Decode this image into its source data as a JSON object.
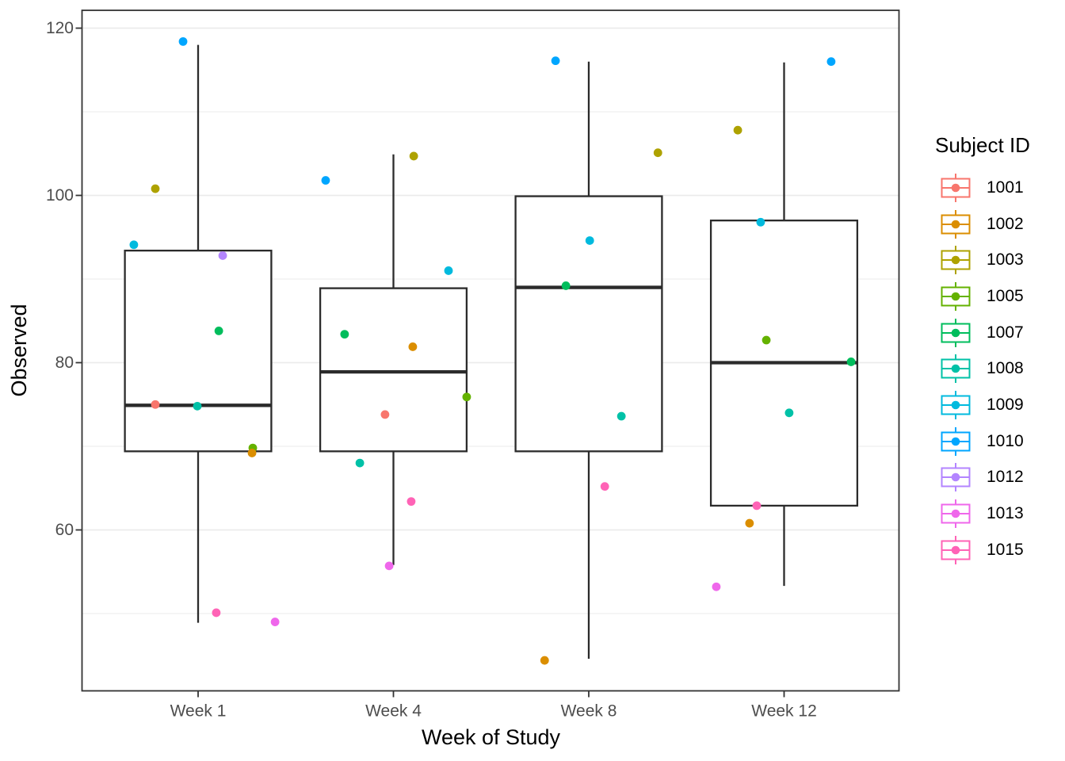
{
  "figure": {
    "background": "#FFFFFF"
  },
  "axes": {
    "x": {
      "title": "Week of Study",
      "categories": [
        "Week 1",
        "Week 4",
        "Week 8",
        "Week 12"
      ]
    },
    "y": {
      "title": "Observed",
      "major_ticks": [
        60,
        80,
        100,
        120
      ],
      "minor_gridlines": [
        50,
        70,
        90,
        110
      ],
      "ylim": [
        40.7,
        122.3
      ]
    }
  },
  "legend": {
    "title": "Subject ID",
    "items": [
      {
        "id": "1001",
        "color": "#F8766D"
      },
      {
        "id": "1002",
        "color": "#DB8E00"
      },
      {
        "id": "1003",
        "color": "#AEA200"
      },
      {
        "id": "1005",
        "color": "#64B200"
      },
      {
        "id": "1007",
        "color": "#00BD5C"
      },
      {
        "id": "1008",
        "color": "#00C1A7"
      },
      {
        "id": "1009",
        "color": "#00BADE"
      },
      {
        "id": "1010",
        "color": "#00A6FF"
      },
      {
        "id": "1012",
        "color": "#B385FF"
      },
      {
        "id": "1013",
        "color": "#EF67EB"
      },
      {
        "id": "1015",
        "color": "#FF63B6"
      }
    ]
  },
  "style_colors": {
    "grid": "#EBEBEB",
    "panel_border": "#333333",
    "box_stroke": "#2B2B2B",
    "tick_mark": "#333333",
    "tick_label": "#4D4D4D",
    "axis_title": "#000000",
    "panel_background": "#FFFFFF"
  },
  "chart_data": {
    "type": "boxplot",
    "render_style": "box-and-whisker with jittered points, theme_bw",
    "title": "",
    "xlabel": "Week of Study",
    "ylabel": "Observed",
    "categories": [
      "Week 1",
      "Week 4",
      "Week 8",
      "Week 12"
    ],
    "y_ticks": [
      60,
      80,
      100,
      120
    ],
    "ylim": [
      40.7,
      122.3
    ],
    "grid": "on",
    "legend_position": "right",
    "legend_title": "Subject ID",
    "boxes": [
      {
        "category": "Week 1",
        "whisker_low": 48.9,
        "q1": 69.4,
        "median": 74.9,
        "q3": 93.4,
        "whisker_high": 118.0
      },
      {
        "category": "Week 4",
        "whisker_low": 55.8,
        "q1": 69.4,
        "median": 78.9,
        "q3": 88.9,
        "whisker_high": 104.9
      },
      {
        "category": "Week 8",
        "whisker_low": 44.6,
        "q1": 69.4,
        "median": 89.0,
        "q3": 99.9,
        "whisker_high": 116.0
      },
      {
        "category": "Week 12",
        "whisker_low": 53.3,
        "q1": 62.9,
        "median": 80.0,
        "q3": 97.0,
        "whisker_high": 115.9
      }
    ],
    "points": [
      {
        "category": "Week 1",
        "subject": "1010",
        "value": 118.4,
        "jitter": -0.077
      },
      {
        "category": "Week 1",
        "subject": "1003",
        "value": 100.8,
        "jitter": -0.219
      },
      {
        "category": "Week 1",
        "subject": "1009",
        "value": 94.1,
        "jitter": -0.329
      },
      {
        "category": "Week 1",
        "subject": "1012",
        "value": 92.8,
        "jitter": 0.126
      },
      {
        "category": "Week 1",
        "subject": "1007",
        "value": 83.8,
        "jitter": 0.106
      },
      {
        "category": "Week 1",
        "subject": "1001",
        "value": 75.0,
        "jitter": -0.219
      },
      {
        "category": "Week 1",
        "subject": "1008",
        "value": 74.8,
        "jitter": -0.004
      },
      {
        "category": "Week 1",
        "subject": "1005",
        "value": 69.8,
        "jitter": 0.28
      },
      {
        "category": "Week 1",
        "subject": "1002",
        "value": 69.2,
        "jitter": 0.276
      },
      {
        "category": "Week 1",
        "subject": "1015",
        "value": 50.1,
        "jitter": 0.093
      },
      {
        "category": "Week 1",
        "subject": "1013",
        "value": 49.0,
        "jitter": 0.394
      },
      {
        "category": "Week 4",
        "subject": "1003",
        "value": 104.7,
        "jitter": 0.104
      },
      {
        "category": "Week 4",
        "subject": "1010",
        "value": 101.8,
        "jitter": -0.347
      },
      {
        "category": "Week 4",
        "subject": "1009",
        "value": 91.0,
        "jitter": 0.282
      },
      {
        "category": "Week 4",
        "subject": "1007",
        "value": 83.4,
        "jitter": -0.25
      },
      {
        "category": "Week 4",
        "subject": "1002",
        "value": 81.9,
        "jitter": 0.099
      },
      {
        "category": "Week 4",
        "subject": "1005",
        "value": 75.9,
        "jitter": 0.375
      },
      {
        "category": "Week 4",
        "subject": "1001",
        "value": 73.8,
        "jitter": -0.043
      },
      {
        "category": "Week 4",
        "subject": "1008",
        "value": 68.0,
        "jitter": -0.172
      },
      {
        "category": "Week 4",
        "subject": "1015",
        "value": 63.4,
        "jitter": 0.091
      },
      {
        "category": "Week 4",
        "subject": "1013",
        "value": 55.7,
        "jitter": -0.022
      },
      {
        "category": "Week 8",
        "subject": "1010",
        "value": 116.1,
        "jitter": -0.17
      },
      {
        "category": "Week 8",
        "subject": "1003",
        "value": 105.1,
        "jitter": 0.354
      },
      {
        "category": "Week 8",
        "subject": "1009",
        "value": 94.6,
        "jitter": 0.005
      },
      {
        "category": "Week 8",
        "subject": "1007",
        "value": 89.2,
        "jitter": -0.117
      },
      {
        "category": "Week 8",
        "subject": "1008",
        "value": 73.6,
        "jitter": 0.167
      },
      {
        "category": "Week 8",
        "subject": "1015",
        "value": 65.2,
        "jitter": 0.082
      },
      {
        "category": "Week 8",
        "subject": "1002",
        "value": 44.4,
        "jitter": -0.226
      },
      {
        "category": "Week 12",
        "subject": "1010",
        "value": 116.0,
        "jitter": 0.241
      },
      {
        "category": "Week 12",
        "subject": "1003",
        "value": 107.8,
        "jitter": -0.237
      },
      {
        "category": "Week 12",
        "subject": "1009",
        "value": 96.8,
        "jitter": -0.12
      },
      {
        "category": "Week 12",
        "subject": "1005",
        "value": 82.7,
        "jitter": -0.091
      },
      {
        "category": "Week 12",
        "subject": "1007",
        "value": 80.1,
        "jitter": 0.343
      },
      {
        "category": "Week 12",
        "subject": "1008",
        "value": 74.0,
        "jitter": 0.026
      },
      {
        "category": "Week 12",
        "subject": "1015",
        "value": 62.9,
        "jitter": -0.14
      },
      {
        "category": "Week 12",
        "subject": "1002",
        "value": 60.8,
        "jitter": -0.177
      },
      {
        "category": "Week 12",
        "subject": "1013",
        "value": 53.2,
        "jitter": -0.347
      }
    ]
  }
}
